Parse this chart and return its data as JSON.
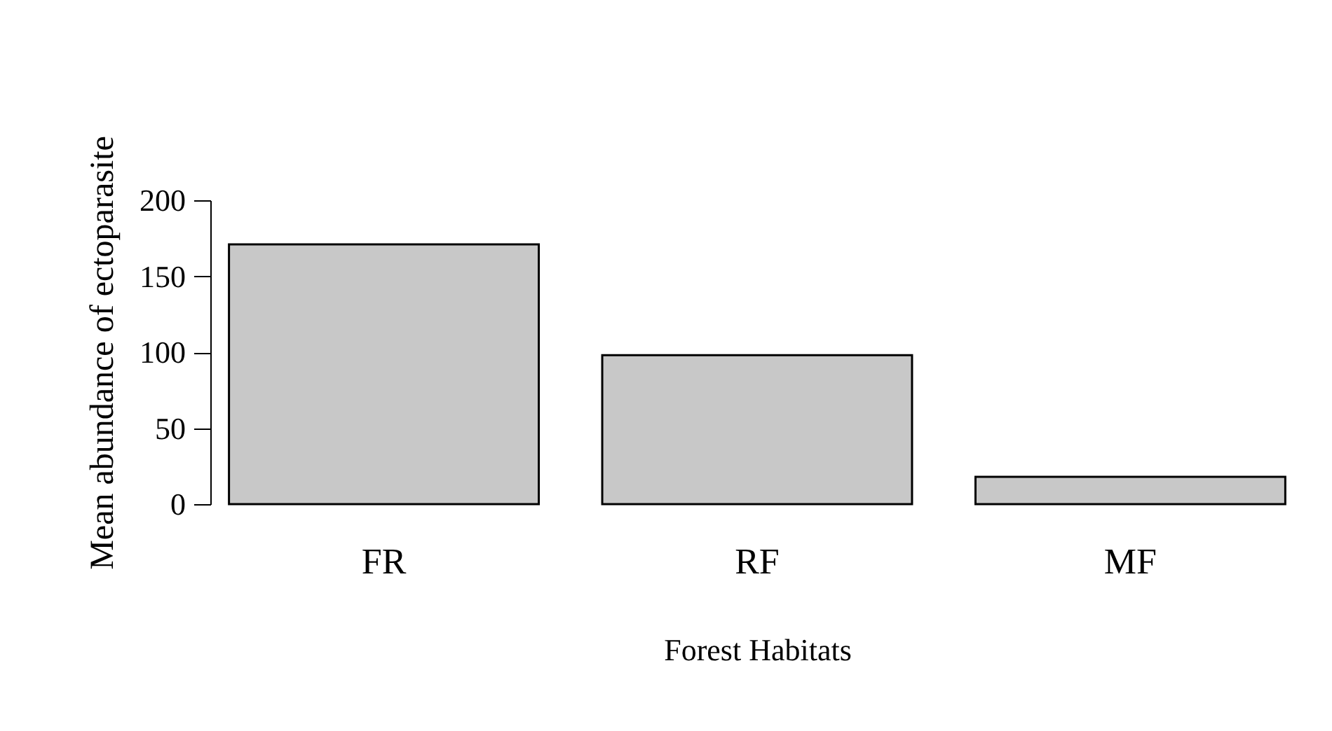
{
  "chart_data": {
    "type": "bar",
    "xlabel": "Forest Habitats",
    "ylabel": "Mean abundance of ectoparasite",
    "categories": [
      "FR",
      "RF",
      "MF"
    ],
    "values": [
      171,
      98,
      18
    ],
    "color": "#c8c8c8",
    "ylim": [
      0,
      200
    ],
    "yticks": [
      0,
      50,
      100,
      150,
      200
    ],
    "grid": false
  }
}
